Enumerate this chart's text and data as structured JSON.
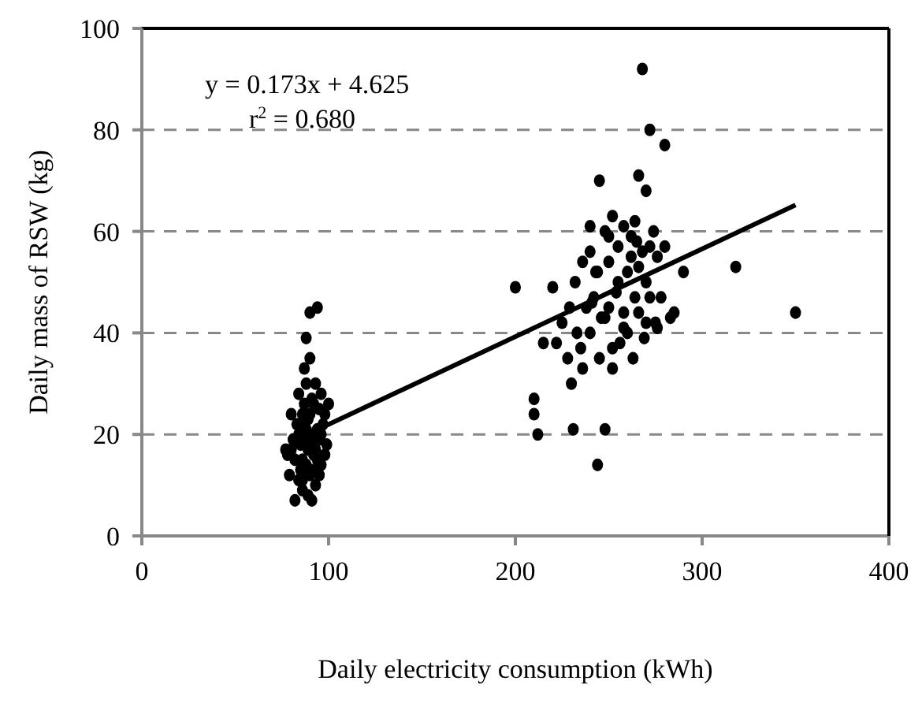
{
  "chart_data": {
    "type": "scatter",
    "xlabel": "Daily electricity consumption (kWh)",
    "ylabel": "Daily mass of RSW (kg)",
    "xlim": [
      0,
      400
    ],
    "xticks": [
      0,
      100,
      200,
      300,
      400
    ],
    "ylim": [
      0,
      100
    ],
    "yticks": [
      0,
      20,
      40,
      60,
      80,
      100
    ],
    "grid": "y",
    "annotations": [
      "y = 0.173x + 4.625",
      "r$^{2}$ = 0.680"
    ],
    "series": [
      {
        "marker": "circle",
        "color": "#000000",
        "x": [
          78,
          80,
          82,
          84,
          85,
          85,
          86,
          86,
          87,
          87,
          88,
          88,
          88,
          89,
          89,
          90,
          90,
          90,
          91,
          91,
          92,
          93,
          93,
          94,
          94,
          95,
          95,
          96,
          96,
          97,
          98,
          99,
          100,
          80,
          82,
          84,
          86,
          88,
          89,
          90,
          91,
          92,
          93,
          87,
          85,
          94,
          96,
          98,
          83,
          81,
          79,
          77,
          90,
          92,
          86,
          95,
          84,
          200,
          210,
          210,
          212,
          215,
          220,
          222,
          225,
          228,
          230,
          231,
          232,
          235,
          236,
          238,
          240,
          240,
          242,
          243,
          244,
          245,
          245,
          246,
          248,
          248,
          250,
          250,
          252,
          252,
          254,
          255,
          256,
          258,
          258,
          260,
          260,
          262,
          263,
          264,
          265,
          266,
          266,
          268,
          268,
          269,
          270,
          270,
          272,
          272,
          274,
          275,
          276,
          278,
          280,
          280,
          283,
          285,
          290,
          318,
          350,
          236,
          240,
          255,
          262,
          248,
          233,
          258,
          266,
          270,
          252,
          272,
          264,
          244,
          250,
          276,
          241,
          229
        ],
        "values": [
          16,
          17,
          15,
          20,
          22,
          13,
          24,
          9,
          19,
          26,
          21,
          14,
          39,
          17,
          23,
          44,
          20,
          12,
          27,
          18,
          16,
          30,
          10,
          45,
          21,
          19,
          25,
          14,
          28,
          22,
          24,
          18,
          26,
          24,
          7,
          11,
          15,
          30,
          8,
          35,
          7,
          13,
          17,
          33,
          18,
          15,
          20,
          16,
          22,
          19,
          12,
          17,
          24,
          26,
          11,
          12,
          28,
          49,
          27,
          24,
          20,
          38,
          49,
          38,
          42,
          35,
          30,
          21,
          50,
          37,
          33,
          45,
          40,
          56,
          47,
          52,
          14,
          35,
          70,
          43,
          21,
          60,
          54,
          45,
          33,
          63,
          48,
          57,
          38,
          44,
          61,
          52,
          40,
          55,
          35,
          47,
          58,
          44,
          71,
          92,
          56,
          39,
          68,
          50,
          80,
          57,
          60,
          42,
          55,
          47,
          77,
          57,
          43,
          44,
          52,
          53,
          44,
          54,
          61,
          50,
          59,
          43,
          40,
          41,
          53,
          42,
          37,
          47,
          62,
          52,
          59,
          41,
          46,
          45
        ]
      },
      {
        "type": "line",
        "marker": "none",
        "color": "#000000",
        "x": [
          88,
          350
        ],
        "values": [
          19.9,
          65.2
        ],
        "line_style": "solid"
      }
    ]
  }
}
